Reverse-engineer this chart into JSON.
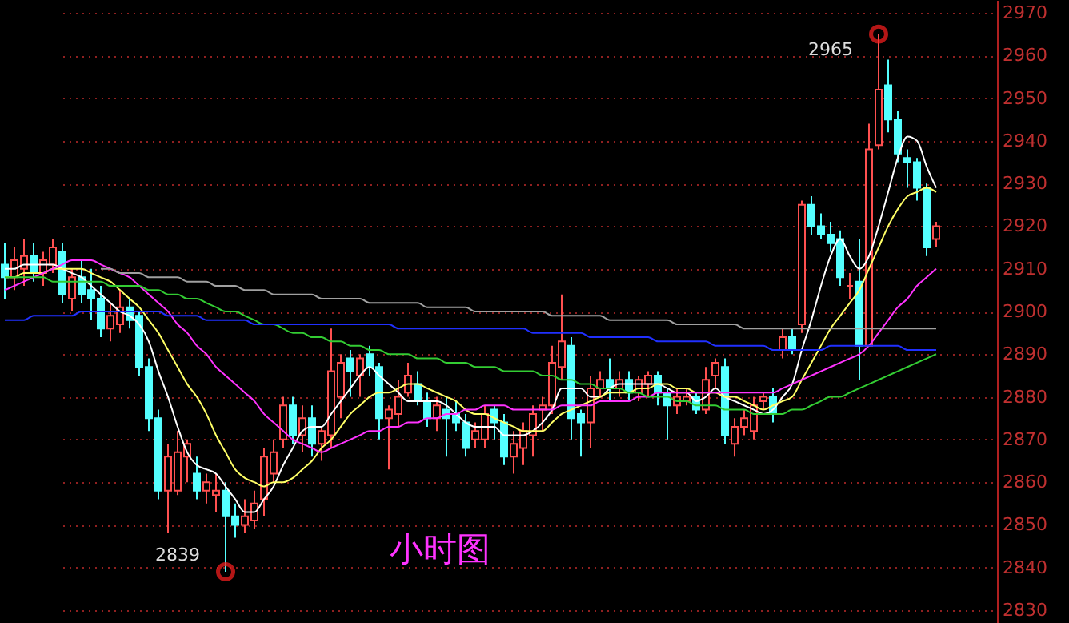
{
  "chart_data": {
    "type": "candlestick",
    "title": "小时图",
    "categories": [
      null,
      null,
      null,
      null,
      null,
      null,
      null,
      null,
      null,
      null,
      null,
      null,
      null,
      null,
      null,
      null,
      null,
      null,
      null,
      null,
      null,
      null,
      null,
      null,
      null,
      null,
      null,
      null,
      null,
      null,
      null,
      null,
      null,
      null,
      null,
      null,
      null,
      null,
      null,
      null,
      null,
      null,
      null,
      null,
      null,
      null,
      null,
      null,
      null,
      null,
      null,
      null,
      null,
      null,
      null,
      null,
      null,
      null,
      null,
      null,
      null,
      null,
      null,
      null,
      null,
      null,
      null,
      null,
      null,
      null,
      null,
      null,
      null,
      null,
      null,
      null,
      null,
      null,
      null,
      null,
      null,
      null,
      null,
      null,
      null,
      null,
      null,
      null,
      null,
      null,
      null,
      null,
      null,
      null,
      null,
      null,
      null,
      null
    ],
    "ohlc": [
      [
        2911,
        2916,
        2903,
        2908
      ],
      [
        2908,
        2915,
        2905,
        2912
      ],
      [
        2910,
        2917,
        2906,
        2913
      ],
      [
        2913,
        2916,
        2907,
        2909
      ],
      [
        2909,
        2914,
        2906,
        2912
      ],
      [
        2911,
        2917,
        2909,
        2915
      ],
      [
        2914,
        2916,
        2902,
        2904
      ],
      [
        2903,
        2910,
        2900,
        2908
      ],
      [
        2908,
        2912,
        2902,
        2904
      ],
      [
        2905,
        2910,
        2898,
        2903
      ],
      [
        2903,
        2906,
        2894,
        2896
      ],
      [
        2896,
        2902,
        2893,
        2899
      ],
      [
        2897,
        2905,
        2895,
        2901
      ],
      [
        2901,
        2903,
        2896,
        2898
      ],
      [
        2899,
        2900,
        2885,
        2887
      ],
      [
        2887,
        2889,
        2872,
        2875
      ],
      [
        2875,
        2877,
        2856,
        2858
      ],
      [
        2858,
        2869,
        2848,
        2866
      ],
      [
        2858,
        2872,
        2857,
        2867
      ],
      [
        2866,
        2870,
        2860,
        2869
      ],
      [
        2862,
        2866,
        2856,
        2858
      ],
      [
        2858,
        2862,
        2855,
        2860
      ],
      [
        2857,
        2862,
        2853,
        2858
      ],
      [
        2858,
        2860,
        2839,
        2852
      ],
      [
        2852,
        2855,
        2847,
        2850
      ],
      [
        2850,
        2856,
        2848,
        2852
      ],
      [
        2851,
        2858,
        2849,
        2855
      ],
      [
        2856,
        2868,
        2852,
        2866
      ],
      [
        2862,
        2870,
        2860,
        2867
      ],
      [
        2870,
        2880,
        2868,
        2878
      ],
      [
        2878,
        2880,
        2869,
        2871
      ],
      [
        2871,
        2878,
        2867,
        2875
      ],
      [
        2875,
        2878,
        2866,
        2869
      ],
      [
        2869,
        2873,
        2865,
        2872
      ],
      [
        2871,
        2896,
        2868,
        2886
      ],
      [
        2880,
        2890,
        2875,
        2888
      ],
      [
        2889,
        2891,
        2880,
        2886
      ],
      [
        2885,
        2890,
        2880,
        2889
      ],
      [
        2890,
        2892,
        2885,
        2887
      ],
      [
        2887,
        2888,
        2870,
        2875
      ],
      [
        2875,
        2878,
        2863,
        2877
      ],
      [
        2876,
        2884,
        2873,
        2880
      ],
      [
        2881,
        2888,
        2880,
        2885
      ],
      [
        2883,
        2886,
        2878,
        2879
      ],
      [
        2879,
        2881,
        2873,
        2875
      ],
      [
        2875,
        2880,
        2872,
        2878
      ],
      [
        2877,
        2880,
        2866,
        2875
      ],
      [
        2876,
        2879,
        2872,
        2874
      ],
      [
        2874,
        2876,
        2866,
        2868
      ],
      [
        2870,
        2874,
        2868,
        2872
      ],
      [
        2870,
        2878,
        2868,
        2876
      ],
      [
        2877,
        2878,
        2870,
        2874
      ],
      [
        2874,
        2876,
        2864,
        2866
      ],
      [
        2866,
        2872,
        2862,
        2869
      ],
      [
        2868,
        2874,
        2864,
        2872
      ],
      [
        2871,
        2878,
        2866,
        2876
      ],
      [
        2877,
        2880,
        2872,
        2878
      ],
      [
        2878,
        2892,
        2876,
        2888
      ],
      [
        2887,
        2904,
        2884,
        2893
      ],
      [
        2892,
        2894,
        2870,
        2875
      ],
      [
        2876,
        2877,
        2866,
        2874
      ],
      [
        2874,
        2885,
        2868,
        2882
      ],
      [
        2882,
        2886,
        2880,
        2884
      ],
      [
        2884,
        2889,
        2879,
        2882
      ],
      [
        2882,
        2886,
        2880,
        2884
      ],
      [
        2884,
        2886,
        2879,
        2881
      ],
      [
        2881,
        2885,
        2879,
        2884
      ],
      [
        2883,
        2886,
        2880,
        2885
      ],
      [
        2885,
        2886,
        2878,
        2881
      ],
      [
        2881,
        2882,
        2870,
        2878
      ],
      [
        2878,
        2882,
        2876,
        2880
      ],
      [
        2879,
        2882,
        2878,
        2880
      ],
      [
        2880,
        2881,
        2876,
        2877
      ],
      [
        2877,
        2887,
        2876,
        2884
      ],
      [
        2885,
        2889,
        2882,
        2888
      ],
      [
        2887,
        2889,
        2869,
        2871
      ],
      [
        2869,
        2875,
        2866,
        2873
      ],
      [
        2873,
        2877,
        2871,
        2875
      ],
      [
        2872,
        2880,
        2870,
        2878
      ],
      [
        2879,
        2881,
        2877,
        2880
      ],
      [
        2880,
        2882,
        2874,
        2876
      ],
      [
        2891,
        2896,
        2889,
        2894
      ],
      [
        2894,
        2896,
        2890,
        2891
      ],
      [
        2897,
        2926,
        2895,
        2925
      ],
      [
        2925,
        2927,
        2918,
        2920
      ],
      [
        2920,
        2923,
        2917,
        2918
      ],
      [
        2918,
        2921,
        2914,
        2916
      ],
      [
        2917,
        2919,
        2906,
        2908
      ],
      [
        2906,
        2909,
        2903,
        2906
      ],
      [
        2907,
        2917,
        2884,
        2892
      ],
      [
        2892,
        2944,
        2892,
        2938
      ],
      [
        2939,
        2965,
        2938,
        2952
      ],
      [
        2953,
        2959,
        2942,
        2945
      ],
      [
        2945,
        2947,
        2935,
        2937
      ],
      [
        2936,
        2938,
        2929,
        2935
      ],
      [
        2935,
        2936,
        2926,
        2929
      ],
      [
        2929,
        2930,
        2913,
        2915
      ],
      [
        2917,
        2921,
        2915,
        2920
      ]
    ],
    "colors": [
      "#54ffff",
      "#ff5050",
      "#ff5050",
      "#54ffff",
      "#ff5050",
      "#ff5050",
      "#54ffff",
      "#ff5050",
      "#54ffff",
      "#54ffff",
      "#54ffff",
      "#ff5050",
      "#ff5050",
      "#54ffff",
      "#54ffff",
      "#54ffff",
      "#54ffff",
      "#ff5050",
      "#ff5050",
      "#ff5050",
      "#54ffff",
      "#ff5050",
      "#ff5050",
      "#54ffff",
      "#54ffff",
      "#ff5050",
      "#ff5050",
      "#ff5050",
      "#ff5050",
      "#ff5050",
      "#54ffff",
      "#ff5050",
      "#54ffff",
      "#ff5050",
      "#ff5050",
      "#ff5050",
      "#54ffff",
      "#ff5050",
      "#54ffff",
      "#54ffff",
      "#ff5050",
      "#ff5050",
      "#ff5050",
      "#54ffff",
      "#54ffff",
      "#ff5050",
      "#54ffff",
      "#54ffff",
      "#54ffff",
      "#ff5050",
      "#ff5050",
      "#54ffff",
      "#54ffff",
      "#ff5050",
      "#ff5050",
      "#ff5050",
      "#ff5050",
      "#ff5050",
      "#ff5050",
      "#54ffff",
      "#54ffff",
      "#ff5050",
      "#ff5050",
      "#54ffff",
      "#ff5050",
      "#54ffff",
      "#ff5050",
      "#ff5050",
      "#54ffff",
      "#54ffff",
      "#ff5050",
      "#ff5050",
      "#54ffff",
      "#ff5050",
      "#ff5050",
      "#54ffff",
      "#ff5050",
      "#ff5050",
      "#ff5050",
      "#ff5050",
      "#54ffff",
      "#ff5050",
      "#54ffff",
      "#ff5050",
      "#54ffff",
      "#54ffff",
      "#54ffff",
      "#54ffff",
      "#ff5050",
      "#54ffff",
      "#ff5050",
      "#ff5050",
      "#54ffff",
      "#54ffff",
      "#54ffff",
      "#54ffff",
      "#54ffff",
      "#ff5050"
    ],
    "series": [
      {
        "type": "line",
        "color": "#ffffff",
        "values": [
          2910,
          2910,
          2911,
          2911,
          2911,
          2911,
          2910,
          2909,
          2908,
          2906,
          2904,
          2902,
          2900,
          2899,
          2897,
          2893,
          2886,
          2880,
          2873,
          2867,
          2864,
          2863,
          2862,
          2859,
          2856,
          2853,
          2853,
          2856,
          2859,
          2864,
          2868,
          2872,
          2873,
          2873,
          2876,
          2879,
          2882,
          2885,
          2887,
          2885,
          2883,
          2881,
          2879,
          2879,
          2879,
          2879,
          2878,
          2876,
          2874,
          2873,
          2873,
          2873,
          2871,
          2871,
          2871,
          2872,
          2874,
          2877,
          2882,
          2882,
          2882,
          2880,
          2880,
          2882,
          2883,
          2883,
          2883,
          2883,
          2883,
          2882,
          2881,
          2881,
          2879,
          2880,
          2882,
          2880,
          2879,
          2878,
          2877,
          2876,
          2877,
          2880,
          2883,
          2891,
          2898,
          2906,
          2913,
          2917,
          2913,
          2910,
          2913,
          2920,
          2928,
          2936,
          2941,
          2940,
          2934,
          2929
        ]
      },
      {
        "type": "line",
        "color": "#ffff66",
        "values": [
          2908,
          2908,
          2909,
          2909,
          2909,
          2910,
          2910,
          2910,
          2910,
          2909,
          2908,
          2907,
          2905,
          2903,
          2901,
          2898,
          2895,
          2891,
          2887,
          2883,
          2880,
          2876,
          2871,
          2867,
          2863,
          2861,
          2860,
          2859,
          2860,
          2860,
          2861,
          2863,
          2865,
          2868,
          2870,
          2873,
          2876,
          2878,
          2880,
          2881,
          2881,
          2882,
          2883,
          2883,
          2882,
          2881,
          2880,
          2879,
          2877,
          2876,
          2876,
          2875,
          2874,
          2873,
          2872,
          2872,
          2872,
          2874,
          2876,
          2877,
          2878,
          2879,
          2880,
          2881,
          2881,
          2881,
          2882,
          2882,
          2883,
          2883,
          2882,
          2882,
          2881,
          2881,
          2881,
          2880,
          2880,
          2879,
          2878,
          2877,
          2878,
          2879,
          2880,
          2884,
          2888,
          2892,
          2896,
          2899,
          2902,
          2905,
          2910,
          2915,
          2920,
          2924,
          2927,
          2928,
          2929,
          2928
        ]
      },
      {
        "type": "line",
        "color": "#ff33ff",
        "values": [
          2905,
          2906,
          2907,
          2908,
          2909,
          2910,
          2911,
          2912,
          2912,
          2912,
          2911,
          2910,
          2909,
          2908,
          2906,
          2904,
          2902,
          2900,
          2897,
          2895,
          2892,
          2890,
          2887,
          2885,
          2883,
          2881,
          2879,
          2876,
          2874,
          2872,
          2870,
          2869,
          2868,
          2867,
          2868,
          2869,
          2870,
          2871,
          2872,
          2872,
          2873,
          2873,
          2874,
          2874,
          2875,
          2875,
          2876,
          2876,
          2877,
          2877,
          2878,
          2878,
          2878,
          2877,
          2877,
          2877,
          2877,
          2877,
          2878,
          2878,
          2878,
          2878,
          2879,
          2879,
          2879,
          2879,
          2880,
          2880,
          2881,
          2881,
          2881,
          2881,
          2881,
          2881,
          2881,
          2881,
          2881,
          2881,
          2881,
          2881,
          2881,
          2882,
          2883,
          2884,
          2885,
          2886,
          2887,
          2888,
          2889,
          2890,
          2892,
          2895,
          2898,
          2901,
          2903,
          2906,
          2908,
          2910
        ]
      },
      {
        "type": "line",
        "color": "#33cc33",
        "values": [
          2908,
          2908,
          2908,
          2908,
          2908,
          2907,
          2907,
          2907,
          2907,
          2907,
          2907,
          2906,
          2906,
          2906,
          2906,
          2905,
          2905,
          2904,
          2904,
          2903,
          2903,
          2902,
          2901,
          2900,
          2900,
          2899,
          2898,
          2897,
          2897,
          2896,
          2895,
          2895,
          2894,
          2894,
          2893,
          2893,
          2892,
          2892,
          2891,
          2891,
          2890,
          2890,
          2890,
          2889,
          2889,
          2889,
          2888,
          2888,
          2888,
          2887,
          2887,
          2887,
          2886,
          2886,
          2886,
          2886,
          2885,
          2885,
          2884,
          2884,
          2883,
          2883,
          2882,
          2882,
          2882,
          2881,
          2881,
          2880,
          2880,
          2880,
          2879,
          2879,
          2878,
          2878,
          2878,
          2877,
          2877,
          2877,
          2876,
          2876,
          2876,
          2876,
          2877,
          2877,
          2878,
          2879,
          2880,
          2880,
          2881,
          2882,
          2883,
          2884,
          2885,
          2886,
          2887,
          2888,
          2889,
          2890
        ]
      },
      {
        "type": "line",
        "color": "#a0a0a0",
        "values": [
          null,
          null,
          null,
          null,
          null,
          null,
          null,
          null,
          null,
          null,
          2910,
          2910,
          2909,
          2909,
          2909,
          2908,
          2908,
          2908,
          2908,
          2907,
          2907,
          2907,
          2906,
          2906,
          2906,
          2905,
          2905,
          2905,
          2904,
          2904,
          2904,
          2904,
          2904,
          2903,
          2903,
          2903,
          2903,
          2903,
          2902,
          2902,
          2902,
          2902,
          2902,
          2902,
          2901,
          2901,
          2901,
          2901,
          2901,
          2900,
          2900,
          2900,
          2900,
          2900,
          2900,
          2900,
          2900,
          2899,
          2899,
          2899,
          2899,
          2899,
          2899,
          2898,
          2898,
          2898,
          2898,
          2898,
          2898,
          2898,
          2897,
          2897,
          2897,
          2897,
          2897,
          2897,
          2897,
          2896,
          2896,
          2896,
          2896,
          2896,
          2896,
          2896,
          2896,
          2896,
          2896,
          2896,
          2896,
          2896,
          2896,
          2896,
          2896,
          2896,
          2896,
          2896,
          2896,
          2896
        ]
      },
      {
        "type": "line",
        "color": "#2030ff",
        "values": [
          2898,
          2898,
          2898,
          2899,
          2899,
          2899,
          2899,
          2899,
          2900,
          2900,
          2900,
          2900,
          2900,
          2900,
          2900,
          2900,
          2900,
          2899,
          2899,
          2899,
          2899,
          2898,
          2898,
          2898,
          2898,
          2898,
          2897,
          2897,
          2897,
          2897,
          2897,
          2897,
          2897,
          2897,
          2897,
          2897,
          2897,
          2897,
          2897,
          2897,
          2897,
          2896,
          2896,
          2896,
          2896,
          2896,
          2896,
          2896,
          2896,
          2896,
          2896,
          2896,
          2896,
          2896,
          2896,
          2895,
          2895,
          2895,
          2895,
          2895,
          2895,
          2894,
          2894,
          2894,
          2894,
          2894,
          2894,
          2894,
          2893,
          2893,
          2893,
          2893,
          2893,
          2893,
          2892,
          2892,
          2892,
          2892,
          2892,
          2892,
          2891,
          2891,
          2891,
          2891,
          2891,
          2891,
          2892,
          2892,
          2892,
          2892,
          2892,
          2892,
          2892,
          2892,
          2891,
          2891,
          2891,
          2891
        ]
      }
    ],
    "annotations": [
      "2965",
      "2839"
    ],
    "ylim": [
      2827,
      2973
    ],
    "yticks": [
      2830,
      2840,
      2850,
      2860,
      2870,
      2880,
      2890,
      2900,
      2910,
      2920,
      2930,
      2940,
      2950,
      2960,
      2970
    ],
    "grid": "y",
    "tick_labels": "y"
  }
}
